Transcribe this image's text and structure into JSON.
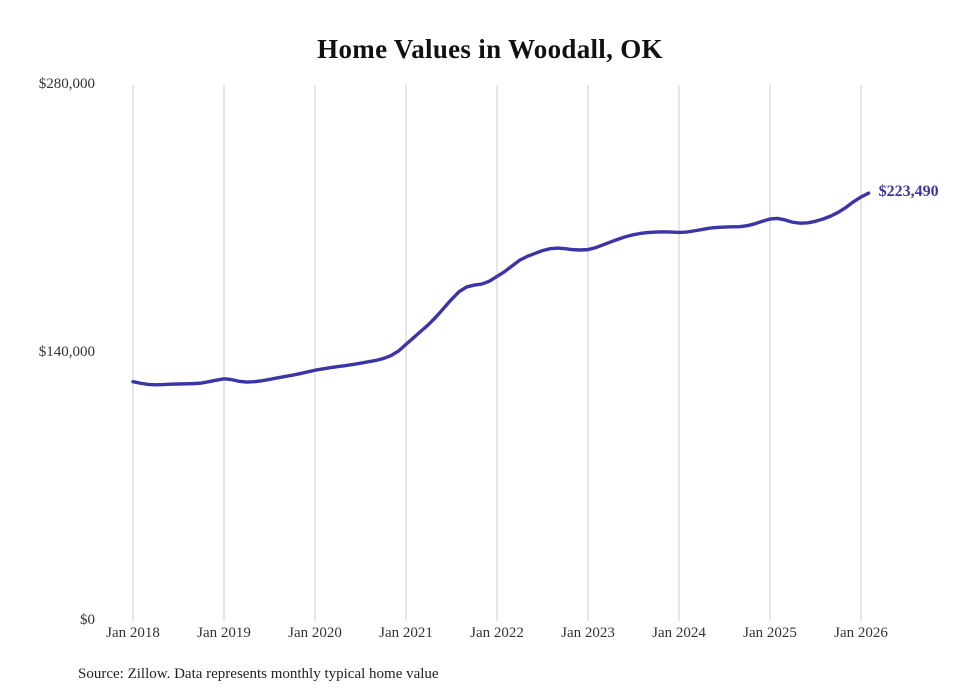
{
  "chart_data": {
    "type": "line",
    "title": "Home Values in Woodall, OK",
    "xlabel": "",
    "ylabel": "",
    "ylim": [
      0,
      280000
    ],
    "grid": "vertical-only",
    "legend": "none",
    "line_color": "#3b35a8",
    "gridline_color": "#cccccc",
    "end_label": "$223,490",
    "end_value": 223490,
    "source_note": "Source: Zillow. Data represents monthly typical home value",
    "y_tick_labels": [
      "$0",
      "$140,000",
      "$280,000"
    ],
    "y_tick_values": [
      0,
      140000,
      280000
    ],
    "x_tick_labels": [
      "Jan 2018",
      "Jan 2019",
      "Jan 2020",
      "Jan 2021",
      "Jan 2022",
      "Jan 2023",
      "Jan 2024",
      "Jan 2025",
      "Jan 2026"
    ],
    "series": [
      {
        "name": "Monthly typical home value",
        "frequency": "monthly",
        "x_start": "2018-01",
        "x_end": "2026-02",
        "values": [
          125000,
          124200,
          123600,
          123400,
          123500,
          123700,
          123800,
          123900,
          124000,
          124300,
          125000,
          125800,
          126500,
          126100,
          125200,
          124800,
          125000,
          125500,
          126200,
          127000,
          127700,
          128400,
          129200,
          130100,
          131000,
          131700,
          132300,
          132900,
          133400,
          134000,
          134700,
          135400,
          136100,
          137100,
          138600,
          141000,
          144500,
          148000,
          151500,
          155000,
          159000,
          163500,
          168000,
          172000,
          174500,
          175500,
          176000,
          177500,
          180000,
          182500,
          185500,
          188500,
          190500,
          192000,
          193500,
          194500,
          194800,
          194500,
          194000,
          193800,
          194000,
          195000,
          196500,
          198000,
          199500,
          200800,
          201800,
          202500,
          203000,
          203200,
          203300,
          203200,
          203000,
          203200,
          203800,
          204500,
          205200,
          205600,
          205800,
          205900,
          206000,
          206500,
          207500,
          208800,
          210000,
          210300,
          209500,
          208300,
          207800,
          208000,
          208800,
          210000,
          211500,
          213500,
          216000,
          219000,
          221500,
          223490
        ]
      }
    ]
  }
}
